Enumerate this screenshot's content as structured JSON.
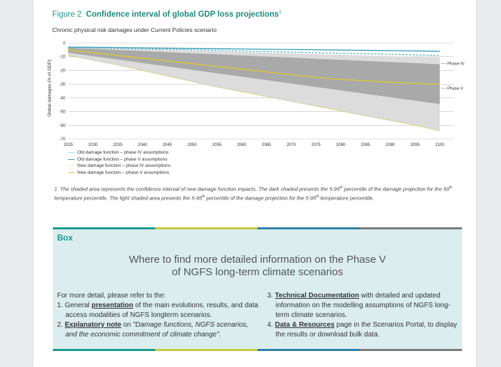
{
  "figure": {
    "number": "Figure 2",
    "title": "Confidence interval of global GDP loss projections",
    "title_sup": "1",
    "subtitle": "Chronic physical risk damages under Current Policies scenario"
  },
  "chart_data": {
    "type": "area",
    "ylabel": "Global damages (% of GDP)",
    "xlabel": "",
    "x": [
      2025,
      2030,
      2035,
      2040,
      2045,
      2050,
      2055,
      2060,
      2065,
      2070,
      2075,
      2080,
      2085,
      2090,
      2095,
      2100
    ],
    "xticks": [
      "2025",
      "2030",
      "2035",
      "2040",
      "2045",
      "2050",
      "2055",
      "2060",
      "2065",
      "2070",
      "2075",
      "2080",
      "2085",
      "2090",
      "2095",
      "2100"
    ],
    "yticks": [
      "0",
      "-10",
      "-20",
      "-30",
      "-40",
      "-50",
      "-60",
      "-70"
    ],
    "ylim": [
      -70,
      0
    ],
    "grid": true,
    "series": [
      {
        "name": "Old damage function – phase IV assumptions",
        "style": "dotted",
        "color": "#5ab0c4",
        "values": [
          -3,
          -3.4,
          -3.8,
          -4.2,
          -4.6,
          -5,
          -5.4,
          -5.8,
          -6.2,
          -6.6,
          -7,
          -7.4,
          -7.8,
          -8.2,
          -8.6,
          -9
        ]
      },
      {
        "name": "Old damage function – phase V assumptions",
        "style": "solid",
        "color": "#2e9ab5",
        "values": [
          -3,
          -3.1,
          -3.3,
          -3.5,
          -3.7,
          -3.9,
          -4.1,
          -4.3,
          -4.5,
          -4.7,
          -4.9,
          -5.1,
          -5.3,
          -5.5,
          -5.7,
          -6
        ]
      },
      {
        "name": "New damage function – phase IV assumptions",
        "style": "dotted",
        "color": "#d8d27a",
        "values": [
          -5,
          -7,
          -9,
          -11,
          -13,
          -15,
          -17,
          -19,
          -21,
          -23,
          -25,
          -26.5,
          -27.5,
          -28.5,
          -29.5,
          -30
        ]
      },
      {
        "name": "New damage function – phase V assumptions",
        "style": "solid",
        "color": "#d8c830",
        "values": [
          -5,
          -7,
          -9,
          -11,
          -13,
          -15,
          -17,
          -19,
          -21,
          -23,
          -25,
          -26.5,
          -27.5,
          -28.5,
          -29.5,
          -30
        ]
      }
    ],
    "bands": [
      {
        "name": "light",
        "color": "#dcdcdc",
        "upper": [
          -3,
          -3.5,
          -4,
          -4.5,
          -5,
          -5.5,
          -6,
          -6.5,
          -7,
          -7.5,
          -8,
          -8.5,
          -9,
          -9.5,
          -10,
          -10.5
        ],
        "lower": [
          -9,
          -12.5,
          -16,
          -20,
          -24,
          -28,
          -32,
          -35.5,
          -39,
          -42.5,
          -46,
          -49.5,
          -53,
          -56.5,
          -60,
          -64
        ]
      },
      {
        "name": "dark",
        "color": "#a9a9a9",
        "upper": [
          -3.5,
          -4.2,
          -5,
          -5.8,
          -6.6,
          -7.4,
          -8.2,
          -9,
          -9.8,
          -10.6,
          -11.4,
          -12.2,
          -13,
          -13.8,
          -14.6,
          -15.5
        ],
        "lower": [
          -7,
          -9.5,
          -12,
          -14.5,
          -17,
          -19.5,
          -22,
          -24.5,
          -27,
          -29.5,
          -32,
          -34.5,
          -37,
          -39.5,
          -42,
          -44.5
        ]
      }
    ],
    "boundary_line": {
      "color": "#c8c870",
      "values": [
        -9,
        -12.5,
        -16,
        -20,
        -24,
        -28,
        -32,
        -35.5,
        -39,
        -42.5,
        -46,
        -49.5,
        -53,
        -56.5,
        -60,
        -64
      ]
    },
    "annotations": [
      {
        "text": "Phase IV",
        "y": -15
      },
      {
        "text": "Phase V",
        "y": -33
      }
    ]
  },
  "legend": [
    "Old damage function – phase IV assumptions",
    "Old damage function – phase V assumptions",
    "New damage function – phase IV assumptions",
    "New damage function – phase V assumptions"
  ],
  "footnote": {
    "marker": "1",
    "text_1": "The shaded area represents the confidence interval of new damage function impacts. The dark shaded presents the 5-95",
    "sup_1": "th",
    "text_2": " percentile of the damage projection for the 50",
    "sup_2": "th",
    "text_3": " temperature percentile. The light shaded area presents the 5-95",
    "sup_3": "th",
    "text_4": " percentile of the damage projection for the 5-95",
    "sup_4": "th",
    "text_5": " temperature percentile."
  },
  "box": {
    "label": "Box",
    "heading_1": "Where to find more detailed information on the Phase V",
    "heading_2": "of NGFS long-term climate scenarios",
    "intro": "For more detail, please refer to the:",
    "item1_pre": "1. General ",
    "item1_link": "presentation",
    "item1_post": " of the main evolutions, results, and data access modalities of NGFS longterm scenarios.",
    "item2_pre": "2. ",
    "item2_link": "Explanatory note",
    "item2_mid": " on ",
    "item2_em": "\"Damage functions, NGFS scenarios, and the economic commitment of climate change\"",
    "item2_post": ".",
    "item3_pre": "3. ",
    "item3_link": "Technical Documentation",
    "item3_post": " with detailed and updated information on the modelling assumptions of NGFS long-term climate scenarios.",
    "item4_pre": "4. ",
    "item4_link": "Data & Resources",
    "item4_post": " page in the Scenarios Portal, to display the results or download bulk data.",
    "bar_colors": [
      "#1a9a8a",
      "#c8c83c",
      "#2e7fa5",
      "#7a7a7a"
    ]
  }
}
